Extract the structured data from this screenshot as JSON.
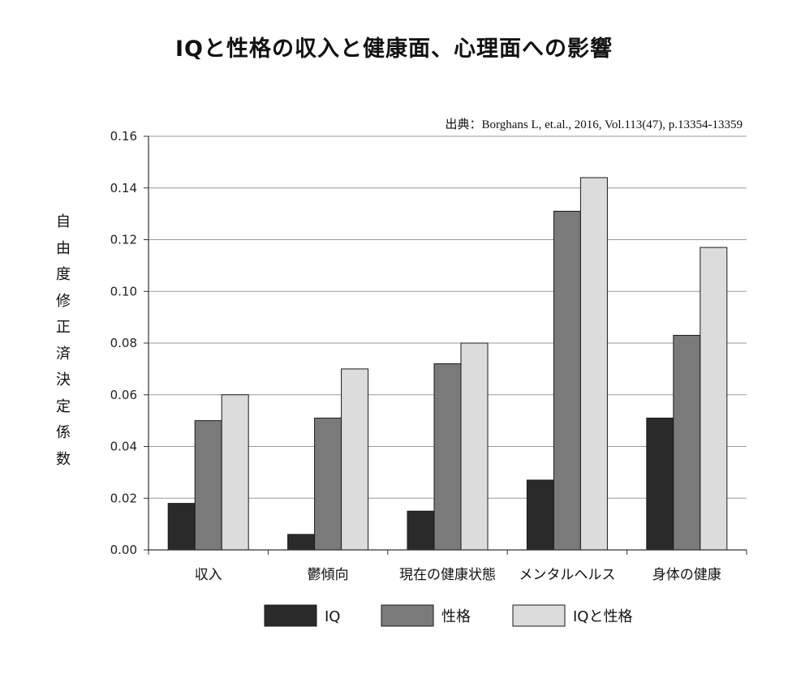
{
  "chart_data": {
    "type": "bar",
    "title": "IQと性格の収入と健康面、心理面への影響",
    "source": "出典：Borghans L, et.al., 2016, Vol.113(47), p.13354-13359",
    "ylabel": "自由度修正済決定係数",
    "xlabel": "",
    "ylim": [
      0,
      0.16
    ],
    "yticks": [
      "0.00",
      "0.02",
      "0.04",
      "0.06",
      "0.08",
      "0.10",
      "0.12",
      "0.14",
      "0.16"
    ],
    "ytick_values": [
      0,
      0.02,
      0.04,
      0.06,
      0.08,
      0.1,
      0.12,
      0.14,
      0.16
    ],
    "grid": true,
    "legend_position": "bottom",
    "categories": [
      "収入",
      "鬱傾向",
      "現在の健康状態",
      "メンタルヘルス",
      "身体の健康"
    ],
    "series": [
      {
        "name": "IQ",
        "color": "#2a2a2a",
        "values": [
          0.018,
          0.006,
          0.015,
          0.027,
          0.051
        ]
      },
      {
        "name": "性格",
        "color": "#7a7a7a",
        "values": [
          0.05,
          0.051,
          0.072,
          0.131,
          0.083
        ]
      },
      {
        "name": "IQと性格",
        "color": "#dcdcdc",
        "values": [
          0.06,
          0.07,
          0.08,
          0.144,
          0.117
        ]
      }
    ]
  }
}
